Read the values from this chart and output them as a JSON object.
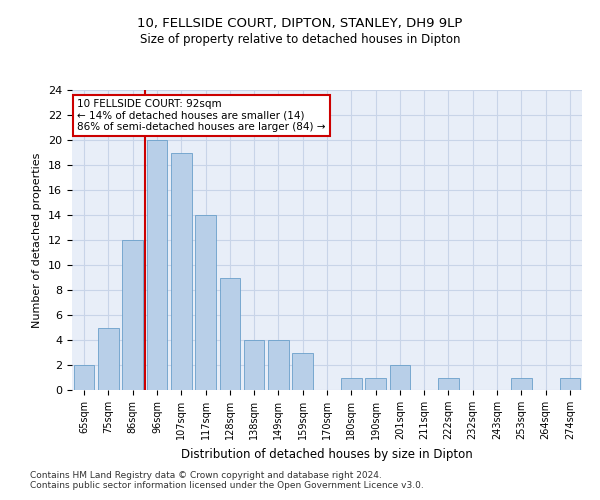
{
  "title1": "10, FELLSIDE COURT, DIPTON, STANLEY, DH9 9LP",
  "title2": "Size of property relative to detached houses in Dipton",
  "xlabel": "Distribution of detached houses by size in Dipton",
  "ylabel": "Number of detached properties",
  "categories": [
    "65sqm",
    "75sqm",
    "86sqm",
    "96sqm",
    "107sqm",
    "117sqm",
    "128sqm",
    "138sqm",
    "149sqm",
    "159sqm",
    "170sqm",
    "180sqm",
    "190sqm",
    "201sqm",
    "211sqm",
    "222sqm",
    "232sqm",
    "243sqm",
    "253sqm",
    "264sqm",
    "274sqm"
  ],
  "values": [
    2,
    5,
    12,
    20,
    19,
    14,
    9,
    4,
    4,
    3,
    0,
    1,
    1,
    2,
    0,
    1,
    0,
    0,
    1,
    0,
    1
  ],
  "bar_color": "#b8cfe8",
  "bar_edge_color": "#6a9fca",
  "vline_color": "#cc0000",
  "annotation_text": "10 FELLSIDE COURT: 92sqm\n← 14% of detached houses are smaller (14)\n86% of semi-detached houses are larger (84) →",
  "annotation_box_color": "#ffffff",
  "annotation_box_edgecolor": "#cc0000",
  "ylim": [
    0,
    24
  ],
  "yticks": [
    0,
    2,
    4,
    6,
    8,
    10,
    12,
    14,
    16,
    18,
    20,
    22,
    24
  ],
  "grid_color": "#c8d4e8",
  "footnote": "Contains HM Land Registry data © Crown copyright and database right 2024.\nContains public sector information licensed under the Open Government Licence v3.0.",
  "bg_color": "#e8eef8"
}
